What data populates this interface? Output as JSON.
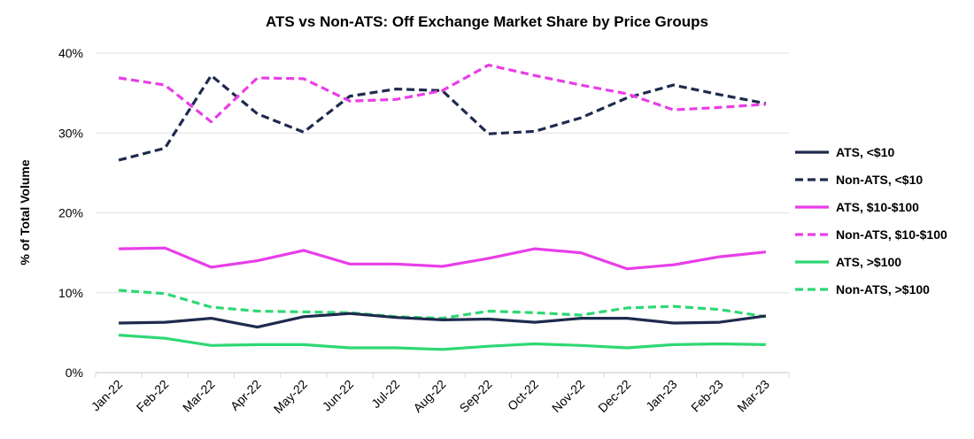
{
  "chart_data": {
    "type": "line",
    "title": "ATS vs Non-ATS: Off Exchange Market Share by Price Groups",
    "xlabel": "",
    "ylabel": "% of Total Volume",
    "ylim": [
      0,
      40
    ],
    "yticks": [
      "0%",
      "10%",
      "20%",
      "30%",
      "40%"
    ],
    "grid": "horizontal",
    "legend": "right",
    "categories": [
      "Jan-22",
      "Feb-22",
      "Mar-22",
      "Apr-22",
      "May-22",
      "Jun-22",
      "Jul-22",
      "Aug-22",
      "Sep-22",
      "Oct-22",
      "Nov-22",
      "Dec-22",
      "Jan-23",
      "Feb-23",
      "Mar-23"
    ],
    "series": [
      {
        "name": "ATS, <$10",
        "color": "#1f2a4e",
        "dashed": false,
        "values": [
          6.2,
          6.3,
          6.8,
          5.7,
          7.0,
          7.4,
          6.9,
          6.6,
          6.7,
          6.3,
          6.8,
          6.8,
          6.2,
          6.3,
          7.1
        ]
      },
      {
        "name": "Non-ATS, <$10",
        "color": "#1f2a4e",
        "dashed": true,
        "values": [
          26.6,
          28.1,
          37.2,
          32.4,
          30.1,
          34.6,
          35.5,
          35.3,
          29.9,
          30.2,
          31.9,
          34.4,
          36.0,
          34.8,
          33.7
        ]
      },
      {
        "name": "ATS, $10-$100",
        "color": "#e83ee8",
        "dashed": false,
        "values": [
          15.5,
          15.6,
          13.2,
          14.0,
          15.3,
          13.6,
          13.6,
          13.3,
          14.3,
          15.5,
          15.0,
          13.0,
          13.5,
          14.5,
          15.1
        ]
      },
      {
        "name": "Non-ATS, $10-$100",
        "color": "#e83ee8",
        "dashed": true,
        "values": [
          36.9,
          36.0,
          31.4,
          36.9,
          36.8,
          34.0,
          34.2,
          35.3,
          38.5,
          37.2,
          36.0,
          34.9,
          32.9,
          33.2,
          33.6
        ]
      },
      {
        "name": "ATS, >$100",
        "color": "#2ed873",
        "dashed": false,
        "values": [
          4.7,
          4.3,
          3.4,
          3.5,
          3.5,
          3.1,
          3.1,
          2.9,
          3.3,
          3.6,
          3.4,
          3.1,
          3.5,
          3.6,
          3.5
        ]
      },
      {
        "name": "Non-ATS, >$100",
        "color": "#2ed873",
        "dashed": true,
        "values": [
          10.3,
          9.9,
          8.2,
          7.7,
          7.6,
          7.5,
          7.0,
          6.8,
          7.7,
          7.5,
          7.2,
          8.1,
          8.3,
          7.9,
          7.0
        ]
      }
    ]
  }
}
